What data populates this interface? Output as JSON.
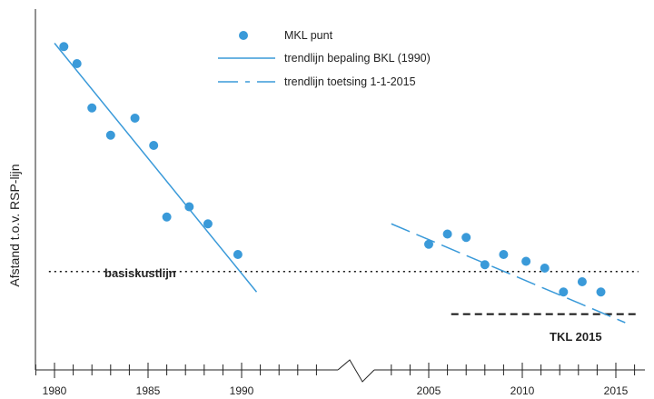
{
  "chart_data": {
    "type": "scatter",
    "title": "",
    "xlabel": "",
    "ylabel": "Afstand t.o.v. RSP-lijn",
    "x_ticks_labeled": [
      1980,
      1985,
      1990,
      2005,
      2010,
      2015
    ],
    "axis_break_between": [
      1991,
      2003
    ],
    "grid": false,
    "legend_position": "top-center",
    "colors": {
      "points": "#3a9ad9",
      "trendlines": "#3a9ad9",
      "reference_lines": "#111111"
    },
    "series": [
      {
        "name": "MKL punt",
        "kind": "points",
        "points": [
          {
            "x": 1980.5,
            "y": 9.3
          },
          {
            "x": 1981.2,
            "y": 8.8
          },
          {
            "x": 1982.0,
            "y": 7.5
          },
          {
            "x": 1983.0,
            "y": 6.7
          },
          {
            "x": 1984.3,
            "y": 7.2
          },
          {
            "x": 1985.3,
            "y": 6.4
          },
          {
            "x": 1986.0,
            "y": 4.3
          },
          {
            "x": 1987.2,
            "y": 4.6
          },
          {
            "x": 1988.2,
            "y": 4.1
          },
          {
            "x": 1989.8,
            "y": 3.2
          },
          {
            "x": 2005.0,
            "y": 3.5
          },
          {
            "x": 2006.0,
            "y": 3.8
          },
          {
            "x": 2007.0,
            "y": 3.7
          },
          {
            "x": 2008.0,
            "y": 2.9
          },
          {
            "x": 2009.0,
            "y": 3.2
          },
          {
            "x": 2010.2,
            "y": 3.0
          },
          {
            "x": 2011.2,
            "y": 2.8
          },
          {
            "x": 2012.2,
            "y": 2.1
          },
          {
            "x": 2013.2,
            "y": 2.4
          },
          {
            "x": 2014.2,
            "y": 2.1
          }
        ]
      },
      {
        "name": "trendlijn bepaling BKL (1990)",
        "kind": "solid-line",
        "points": [
          {
            "x": 1980.0,
            "y": 9.4
          },
          {
            "x": 1990.8,
            "y": 2.1
          }
        ]
      },
      {
        "name": "trendlijn toetsing 1-1-2015",
        "kind": "dashed-line",
        "points": [
          {
            "x": 2003.0,
            "y": 4.1
          },
          {
            "x": 2015.5,
            "y": 1.2
          }
        ]
      }
    ],
    "reference_lines": [
      {
        "label": "basiskustlijn",
        "y": 2.7,
        "x_start": 1979.7,
        "x_end": 2016.2,
        "style": "dotted"
      },
      {
        "label": "TKL 2015",
        "y": 1.45,
        "x_start": 2006.2,
        "x_end": 2016.2,
        "style": "dashed"
      }
    ]
  }
}
